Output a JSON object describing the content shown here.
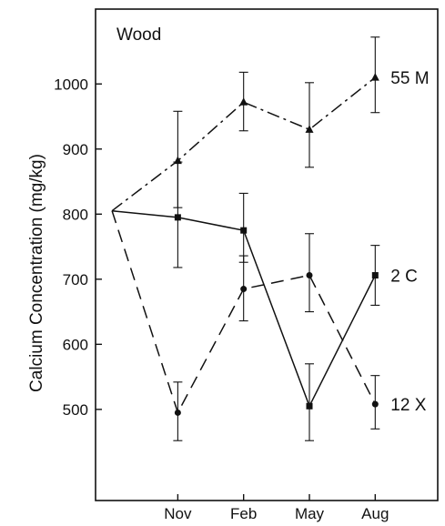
{
  "chart_data": {
    "type": "line",
    "title": "Wood",
    "xlabel": "",
    "ylabel": "Calcium Concentration (mg/kg)",
    "x_ticks": [
      "Nov",
      "Feb",
      "May",
      "Aug"
    ],
    "y_ticks": [
      500,
      600,
      700,
      800,
      900,
      1000
    ],
    "ylim": [
      360,
      1115
    ],
    "x_positions": {
      "start": 0,
      "Nov": 1,
      "Feb": 2,
      "May": 3,
      "Aug": 4
    },
    "xlim": [
      -0.25,
      4.95
    ],
    "grid": false,
    "legend": "none",
    "series": [
      {
        "name": "55 M",
        "marker": "triangle",
        "dash": "dash-dot",
        "points": [
          {
            "x": 0,
            "y": 805
          },
          {
            "x": 1,
            "y": 882,
            "err": [
              810,
              958
            ]
          },
          {
            "x": 2,
            "y": 972,
            "err": [
              928,
              1018
            ]
          },
          {
            "x": 3,
            "y": 930,
            "err": [
              872,
              1002
            ]
          },
          {
            "x": 4,
            "y": 1010,
            "err": [
              956,
              1072
            ]
          }
        ]
      },
      {
        "name": "2 C",
        "marker": "square",
        "dash": "solid",
        "points": [
          {
            "x": 0,
            "y": 805
          },
          {
            "x": 1,
            "y": 795,
            "err": [
              718,
              880
            ]
          },
          {
            "x": 2,
            "y": 775,
            "err": [
              726,
              832
            ]
          },
          {
            "x": 3,
            "y": 505,
            "err": [
              452,
              570
            ]
          },
          {
            "x": 4,
            "y": 706,
            "err": [
              660,
              752
            ]
          }
        ]
      },
      {
        "name": "12 X",
        "marker": "circle",
        "dash": "dashed",
        "points": [
          {
            "x": 0,
            "y": 805
          },
          {
            "x": 1,
            "y": 495,
            "err": [
              452,
              542
            ]
          },
          {
            "x": 2,
            "y": 685,
            "err": [
              636,
              736
            ]
          },
          {
            "x": 3,
            "y": 706,
            "err": [
              650,
              770
            ]
          },
          {
            "x": 4,
            "y": 508,
            "err": [
              470,
              552
            ]
          }
        ]
      }
    ]
  }
}
